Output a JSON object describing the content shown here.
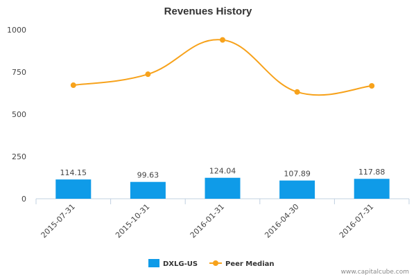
{
  "chart_data": {
    "type": "bar+line",
    "title": "Revenues History",
    "categories": [
      "2015-07-31",
      "2015-10-31",
      "2016-01-31",
      "2016-04-30",
      "2016-07-31"
    ],
    "ylim": [
      0,
      1000
    ],
    "yticks": [
      0,
      250,
      500,
      750,
      1000
    ],
    "grid": false,
    "legend_position": "bottom",
    "series": [
      {
        "name": "DXLG-US",
        "type": "bar",
        "color": "#0f9be8",
        "values": [
          114.15,
          99.63,
          124.04,
          107.89,
          117.88
        ],
        "labels": [
          "114.15",
          "99.63",
          "124.04",
          "107.89",
          "117.88"
        ]
      },
      {
        "name": "Peer Median",
        "type": "line",
        "color": "#f7a21b",
        "values": [
          672,
          737,
          940,
          632,
          668
        ]
      }
    ]
  },
  "credit": "www.capitalcube.com"
}
